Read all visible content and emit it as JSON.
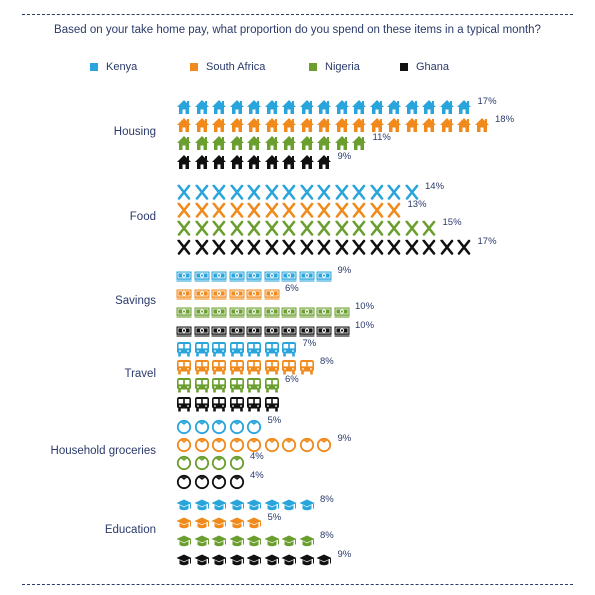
{
  "chart_data": {
    "type": "pictograph",
    "title": "Based on your take home pay, what proportion do you spend on these items in a typical month?",
    "legend_position": "top",
    "series": [
      {
        "name": "Kenya",
        "color": "#2aa5dc"
      },
      {
        "name": "South Africa",
        "color": "#f08a1c"
      },
      {
        "name": "Nigeria",
        "color": "#6a9e2e"
      },
      {
        "name": "Ghana",
        "color": "#111111"
      }
    ],
    "categories": [
      {
        "name": "Housing",
        "icon": "house-icon",
        "values": [
          17,
          18,
          11,
          9
        ],
        "labels": [
          "17%",
          "18%",
          "11%",
          "9%"
        ]
      },
      {
        "name": "Food",
        "icon": "fork-knife-icon",
        "values": [
          14,
          13,
          15,
          17
        ],
        "labels": [
          "14%",
          "13%",
          "15%",
          "17%"
        ]
      },
      {
        "name": "Savings",
        "icon": "cash-stack-icon",
        "values": [
          9,
          6,
          10,
          10
        ],
        "labels": [
          "9%",
          "6%",
          "10%",
          "10%"
        ]
      },
      {
        "name": "Travel",
        "icon": "bus-icon",
        "values": [
          7,
          8,
          6,
          6
        ],
        "labels": [
          "7%",
          "8%",
          "6%",
          ""
        ]
      },
      {
        "name": "Household groceries",
        "icon": "tomato-icon",
        "values": [
          5,
          9,
          4,
          4
        ],
        "labels": [
          "5%",
          "9%",
          "4%",
          "4%"
        ]
      },
      {
        "name": "Education",
        "icon": "graduation-cap-icon",
        "values": [
          8,
          5,
          8,
          9
        ],
        "labels": [
          "8%",
          "5%",
          "8%",
          "9%"
        ]
      }
    ]
  }
}
